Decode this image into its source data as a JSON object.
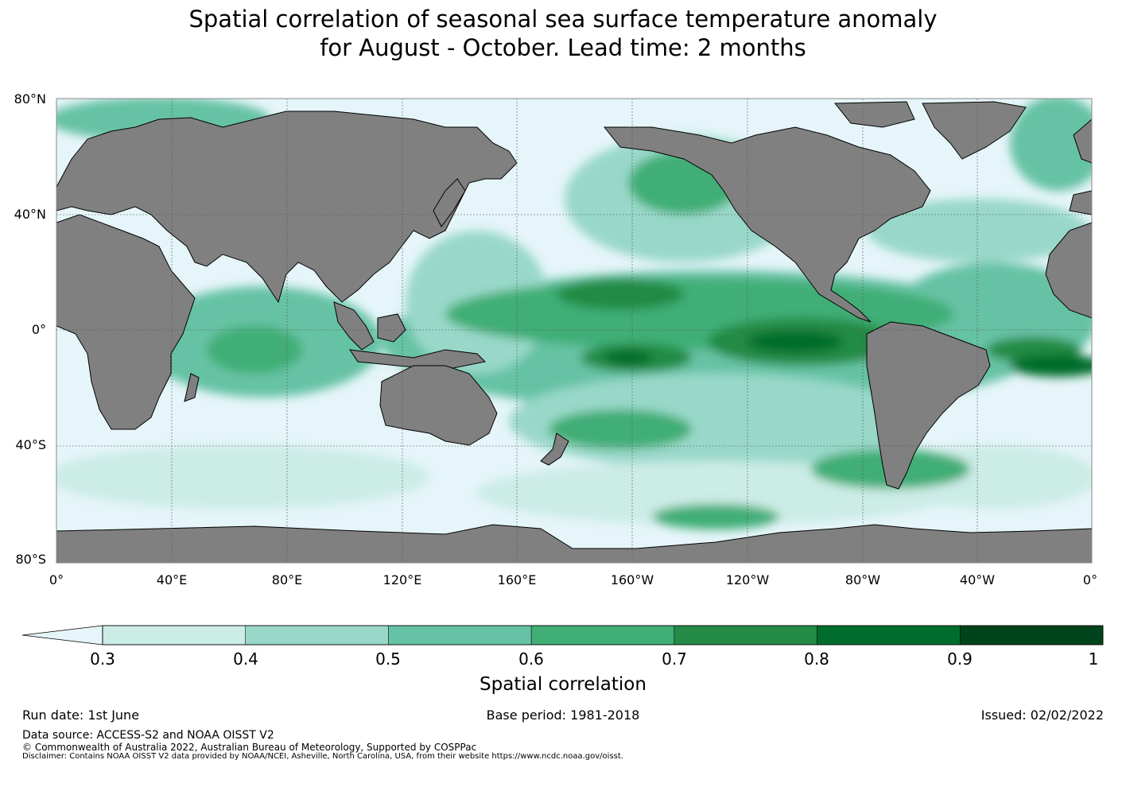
{
  "title": {
    "line1": "Spatial correlation of seasonal sea surface temperature anomaly",
    "line2": "for August - October. Lead time: 2 months"
  },
  "map": {
    "lat_labels": [
      "80°N",
      "40°N",
      "0°",
      "40°S",
      "80°S"
    ],
    "lon_labels": [
      "0°",
      "40°E",
      "80°E",
      "120°E",
      "160°E",
      "160°W",
      "120°W",
      "80°W",
      "40°W",
      "0°"
    ],
    "colors": {
      "land": "#808080",
      "ocean_low": "#e5f5f9",
      "coast": "#000000",
      "grid": "#555555"
    }
  },
  "colorbar": {
    "label": "Spatial correlation",
    "ticks": [
      "0.3",
      "0.4",
      "0.5",
      "0.6",
      "0.7",
      "0.8",
      "0.9",
      "1"
    ],
    "colors": [
      "#e5f5f9",
      "#ccece6",
      "#99d8c9",
      "#66c2a4",
      "#41ae76",
      "#238b45",
      "#006d2c",
      "#00441b"
    ]
  },
  "footer": {
    "run_date": "Run date: 1st June",
    "base_period": "Base period: 1981-2018",
    "issued": "Issued: 02/02/2022",
    "data_source": "Data source: ACCESS-S2 and NOAA OISST V2",
    "copyright": "© Commonwealth of Australia 2022, Australian Bureau of Meteorology, Supported by COSPPac",
    "disclaimer": "Disclaimer: Contains NOAA OISST V2 data provided by NOAA/NCEI, Asheville, North Carolina, USA, from their website https://www.ncdc.noaa.gov/oisst."
  }
}
